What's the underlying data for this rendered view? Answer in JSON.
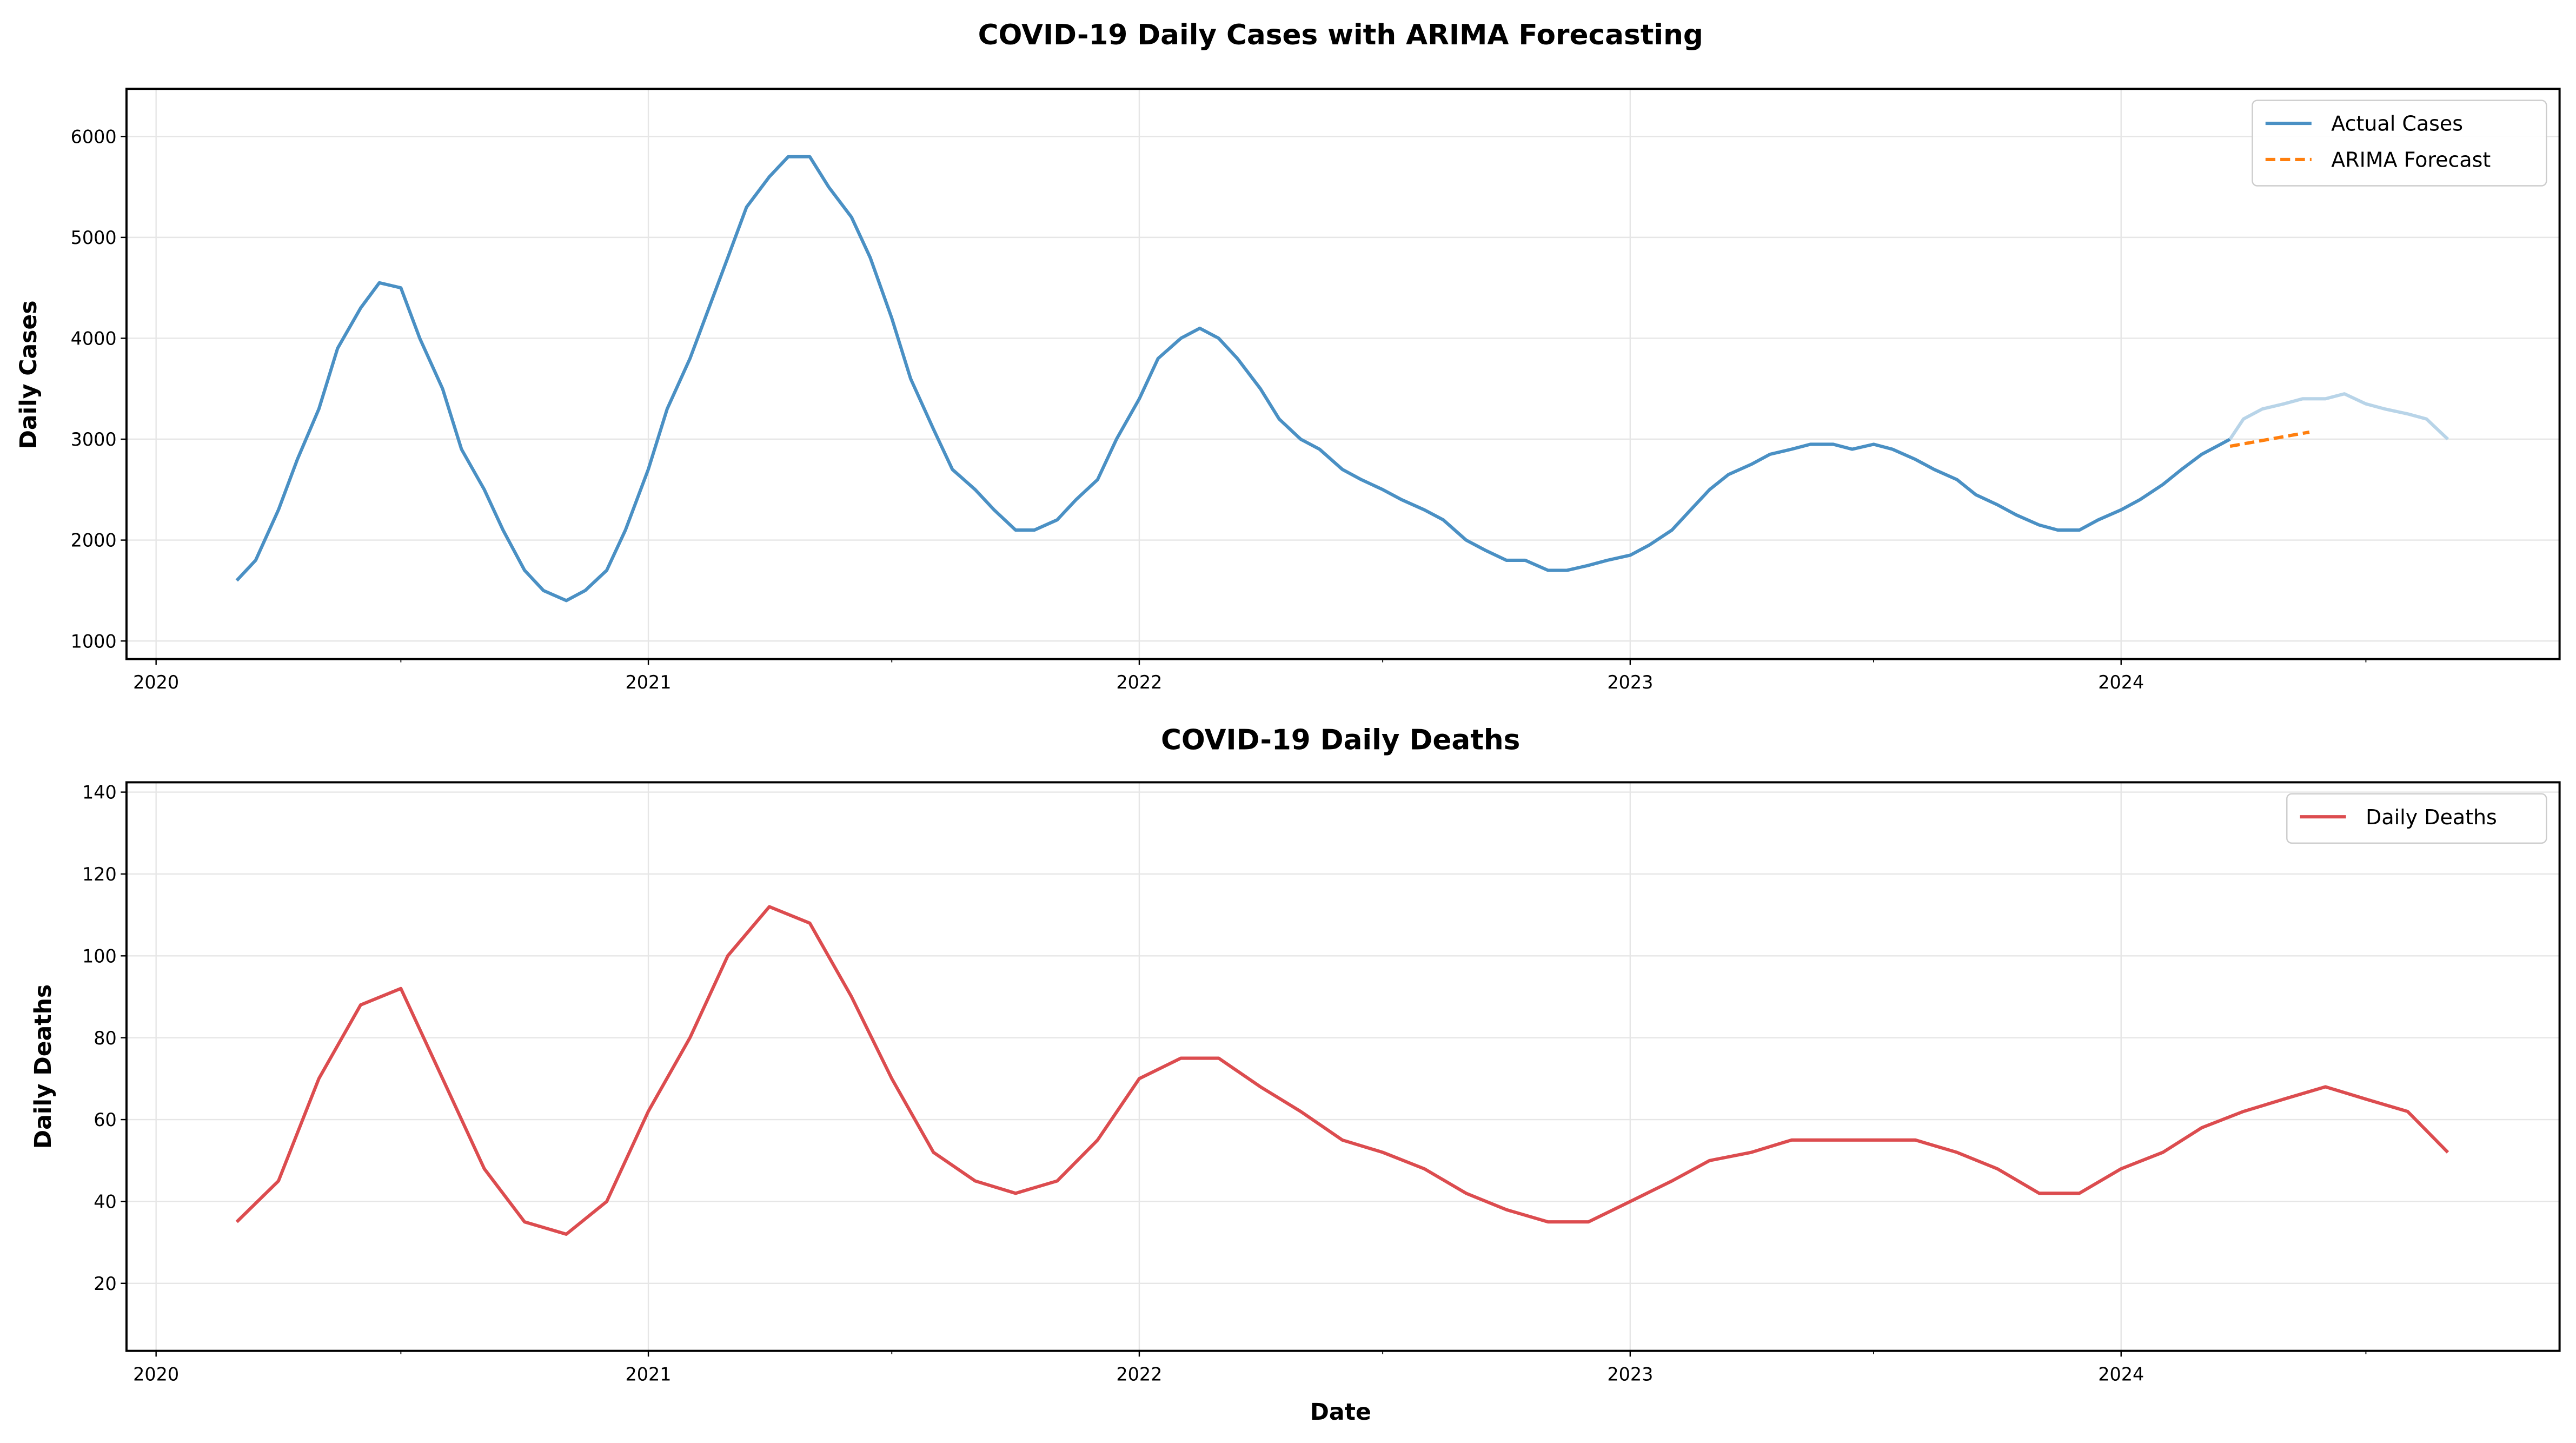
{
  "chart_data": [
    {
      "type": "line",
      "title": "COVID-19 Daily Cases with ARIMA Forecasting",
      "xlabel": "",
      "ylabel": "Daily Cases",
      "xlim": [
        "2019-12-10",
        "2024-11-22"
      ],
      "ylim": [
        821,
        6472
      ],
      "x_ticks": [
        "2020",
        "2021",
        "2022",
        "2023",
        "2024"
      ],
      "y_ticks": [
        1000,
        2000,
        3000,
        4000,
        5000,
        6000
      ],
      "grid": true,
      "legend": "top-right",
      "series": [
        {
          "name": "Actual Cases",
          "color": "#4a90c4",
          "style": "solid",
          "x": [
            "2020-03-01",
            "2020-03-15",
            "2020-04-01",
            "2020-04-15",
            "2020-05-01",
            "2020-05-15",
            "2020-06-01",
            "2020-06-15",
            "2020-07-01",
            "2020-07-15",
            "2020-08-01",
            "2020-08-15",
            "2020-09-01",
            "2020-09-15",
            "2020-10-01",
            "2020-10-15",
            "2020-11-01",
            "2020-11-15",
            "2020-12-01",
            "2020-12-15",
            "2021-01-01",
            "2021-01-15",
            "2021-02-01",
            "2021-02-15",
            "2021-03-01",
            "2021-03-15",
            "2021-04-01",
            "2021-04-15",
            "2021-05-01",
            "2021-05-15",
            "2021-06-01",
            "2021-06-15",
            "2021-07-01",
            "2021-07-15",
            "2021-08-01",
            "2021-08-15",
            "2021-09-01",
            "2021-09-15",
            "2021-10-01",
            "2021-10-15",
            "2021-11-01",
            "2021-11-15",
            "2021-12-01",
            "2021-12-15",
            "2022-01-01",
            "2022-01-15",
            "2022-02-01",
            "2022-02-15",
            "2022-03-01",
            "2022-03-15",
            "2022-04-01",
            "2022-04-15",
            "2022-05-01",
            "2022-05-15",
            "2022-06-01",
            "2022-06-15",
            "2022-07-01",
            "2022-07-15",
            "2022-08-01",
            "2022-08-15",
            "2022-09-01",
            "2022-09-15",
            "2022-10-01",
            "2022-10-15",
            "2022-11-01",
            "2022-11-15",
            "2022-12-01",
            "2022-12-15",
            "2023-01-01",
            "2023-01-15",
            "2023-02-01",
            "2023-02-15",
            "2023-03-01",
            "2023-03-15",
            "2023-04-01",
            "2023-04-15",
            "2023-05-01",
            "2023-05-15",
            "2023-06-01",
            "2023-06-15",
            "2023-07-01",
            "2023-07-15",
            "2023-08-01",
            "2023-08-15",
            "2023-09-01",
            "2023-09-15",
            "2023-10-01",
            "2023-10-15",
            "2023-11-01",
            "2023-11-15",
            "2023-12-01",
            "2023-12-15",
            "2024-01-01",
            "2024-01-15",
            "2024-02-01",
            "2024-02-15",
            "2024-03-01",
            "2024-03-15",
            "2024-03-22"
          ],
          "y": [
            1600,
            1800,
            2300,
            2800,
            3300,
            3900,
            4300,
            4550,
            4500,
            4000,
            3500,
            2900,
            2500,
            2100,
            1700,
            1500,
            1400,
            1500,
            1700,
            2100,
            2700,
            3300,
            3800,
            4300,
            4800,
            5300,
            5600,
            5800,
            5800,
            5500,
            5200,
            4800,
            4200,
            3600,
            3100,
            2700,
            2500,
            2300,
            2100,
            2100,
            2200,
            2400,
            2600,
            3000,
            3400,
            3800,
            4000,
            4100,
            4000,
            3800,
            3500,
            3200,
            3000,
            2900,
            2700,
            2600,
            2500,
            2400,
            2300,
            2200,
            2000,
            1900,
            1800,
            1800,
            1700,
            1700,
            1750,
            1800,
            1850,
            1950,
            2100,
            2300,
            2500,
            2650,
            2750,
            2850,
            2900,
            2950,
            2950,
            2900,
            2950,
            2900,
            2800,
            2700,
            2600,
            2450,
            2350,
            2250,
            2150,
            2100,
            2100,
            2200,
            2300,
            2400,
            2550,
            2700,
            2850,
            2950,
            3000
          ]
        },
        {
          "color": "#b8d4e8",
          "style": "solid",
          "x": [
            "2024-03-22",
            "2024-04-01",
            "2024-04-15",
            "2024-05-01",
            "2024-05-15",
            "2024-06-01",
            "2024-06-15",
            "2024-07-01",
            "2024-07-15",
            "2024-08-01",
            "2024-08-15",
            "2024-08-31"
          ],
          "y": [
            3000,
            3200,
            3300,
            3350,
            3400,
            3400,
            3450,
            3350,
            3300,
            3250,
            3200,
            3000
          ]
        },
        {
          "name": "ARIMA Forecast",
          "color": "#ff7f0e",
          "style": "dashed",
          "x": [
            "2024-03-22",
            "2024-05-20"
          ],
          "y": [
            2930,
            3070
          ]
        }
      ]
    },
    {
      "type": "line",
      "title": "COVID-19 Daily Deaths",
      "xlabel": "Date",
      "ylabel": "Daily Deaths",
      "xlim": [
        "2019-12-10",
        "2024-11-22"
      ],
      "ylim": [
        3.5,
        142.4
      ],
      "x_ticks": [
        "2020",
        "2021",
        "2022",
        "2023",
        "2024"
      ],
      "y_ticks": [
        20,
        40,
        60,
        80,
        100,
        120,
        140
      ],
      "grid": true,
      "legend": "top-right",
      "series": [
        {
          "name": "Daily Deaths",
          "color": "#dc4c4f",
          "style": "solid",
          "x": [
            "2020-03-01",
            "2020-04-01",
            "2020-05-01",
            "2020-06-01",
            "2020-07-01",
            "2020-08-01",
            "2020-09-01",
            "2020-10-01",
            "2020-11-01",
            "2020-12-01",
            "2021-01-01",
            "2021-02-01",
            "2021-03-01",
            "2021-04-01",
            "2021-05-01",
            "2021-06-01",
            "2021-07-01",
            "2021-08-01",
            "2021-09-01",
            "2021-10-01",
            "2021-11-01",
            "2021-12-01",
            "2022-01-01",
            "2022-02-01",
            "2022-03-01",
            "2022-04-01",
            "2022-05-01",
            "2022-06-01",
            "2022-07-01",
            "2022-08-01",
            "2022-09-01",
            "2022-10-01",
            "2022-11-01",
            "2022-12-01",
            "2023-01-01",
            "2023-02-01",
            "2023-03-01",
            "2023-04-01",
            "2023-05-01",
            "2023-06-01",
            "2023-07-01",
            "2023-08-01",
            "2023-09-01",
            "2023-10-01",
            "2023-11-01",
            "2023-12-01",
            "2024-01-01",
            "2024-02-01",
            "2024-03-01",
            "2024-04-01",
            "2024-05-01",
            "2024-06-01",
            "2024-07-01",
            "2024-08-01",
            "2024-08-31"
          ],
          "y": [
            35,
            45,
            70,
            88,
            92,
            70,
            48,
            35,
            32,
            40,
            62,
            80,
            100,
            112,
            108,
            90,
            70,
            52,
            45,
            42,
            45,
            55,
            70,
            75,
            75,
            68,
            62,
            55,
            52,
            48,
            42,
            38,
            35,
            35,
            40,
            45,
            50,
            52,
            55,
            55,
            55,
            55,
            52,
            48,
            42,
            42,
            48,
            52,
            58,
            62,
            65,
            68,
            65,
            62,
            52
          ]
        }
      ]
    }
  ]
}
